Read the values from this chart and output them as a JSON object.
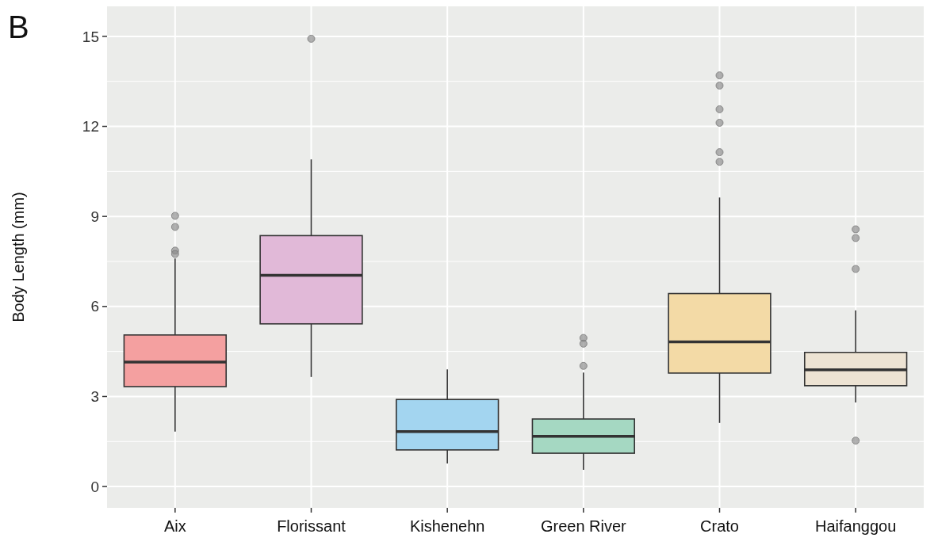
{
  "chart_data": {
    "type": "box",
    "ylabel": "Body Length (mm)",
    "annotations": [
      "B"
    ],
    "categories": [
      "Aix",
      "Florissant",
      "Kishenehn",
      "Green River",
      "Crato",
      "Haifanggou"
    ],
    "colors": [
      "#f4a0a0",
      "#e1b9d8",
      "#a3d5f0",
      "#a5d8c2",
      "#f3daa6",
      "#ede3d3"
    ],
    "boxes": [
      {
        "low": 1.83,
        "q1": 3.33,
        "median": 4.15,
        "q3": 5.05,
        "high": 7.6,
        "outliers": [
          9.02,
          8.65,
          7.86,
          7.75
        ]
      },
      {
        "low": 3.65,
        "q1": 5.42,
        "median": 7.04,
        "q3": 8.36,
        "high": 10.9,
        "outliers": [
          14.92
        ]
      },
      {
        "low": 0.77,
        "q1": 1.22,
        "median": 1.83,
        "q3": 2.9,
        "high": 3.9
      },
      {
        "low": 0.56,
        "q1": 1.11,
        "median": 1.67,
        "q3": 2.25,
        "high": 3.8,
        "outliers": [
          4.95,
          4.76,
          4.02
        ]
      },
      {
        "low": 2.12,
        "q1": 3.78,
        "median": 4.82,
        "q3": 6.43,
        "high": 9.63,
        "outliers": [
          13.7,
          13.36,
          12.57,
          12.12,
          11.14,
          10.82
        ]
      },
      {
        "low": 2.8,
        "q1": 3.36,
        "median": 3.89,
        "q3": 4.47,
        "high": 5.87,
        "outliers": [
          8.57,
          8.28,
          7.25,
          1.53
        ]
      }
    ],
    "ylim": [
      -0.71,
      16
    ],
    "yticks": [
      0,
      3,
      6,
      9,
      12,
      15
    ],
    "grid": true
  }
}
